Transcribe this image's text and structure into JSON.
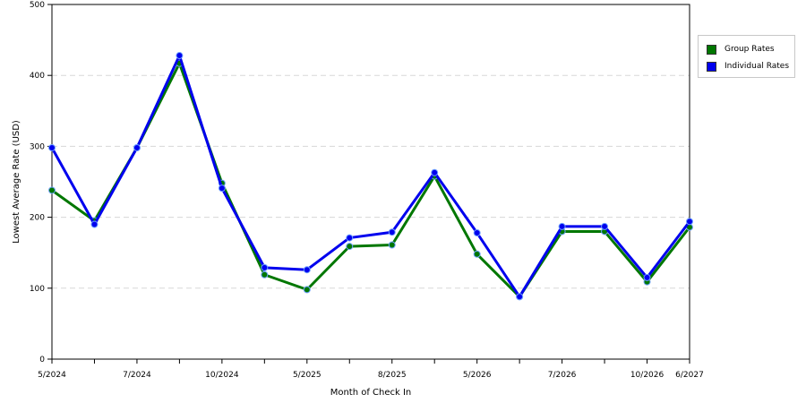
{
  "chart_data": {
    "type": "line",
    "xlabel": "Month of Check In",
    "ylabel": "Lowest Average Rate (USD)",
    "ylim": [
      0,
      500
    ],
    "yticks": [
      0,
      100,
      200,
      300,
      400,
      500
    ],
    "grid": "horizontal dashed",
    "legend_position": "right",
    "x_points": 16,
    "x_tick_labels": [
      {
        "index": 0,
        "label": "5/2024"
      },
      {
        "index": 2,
        "label": "7/2024"
      },
      {
        "index": 4,
        "label": "10/2024"
      },
      {
        "index": 6,
        "label": "5/2025"
      },
      {
        "index": 8,
        "label": "8/2025"
      },
      {
        "index": 10,
        "label": "5/2026"
      },
      {
        "index": 12,
        "label": "7/2026"
      },
      {
        "index": 14,
        "label": "10/2026"
      },
      {
        "index": 15,
        "label": "6/2027"
      }
    ],
    "series": [
      {
        "name": "Group Rates",
        "color": "#007700",
        "values": [
          238,
          195,
          298,
          417,
          248,
          119,
          98,
          159,
          161,
          258,
          148,
          88,
          180,
          180,
          109,
          186
        ]
      },
      {
        "name": "Individual Rates",
        "color": "#0000ee",
        "values": [
          298,
          190,
          298,
          428,
          241,
          129,
          126,
          171,
          179,
          263,
          178,
          88,
          187,
          187,
          115,
          194
        ]
      }
    ]
  }
}
